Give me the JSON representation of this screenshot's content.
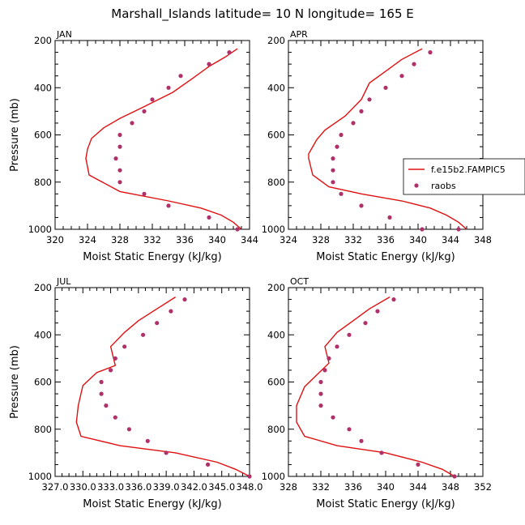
{
  "title": "Marshall_Islands  latitude= 10 N longitude= 165 E",
  "legend": {
    "model": "f.e15b2.FAMPIC5",
    "obs": "raobs"
  },
  "colors": {
    "model": "#e01010",
    "obs": "#b0306a"
  },
  "chart_data": [
    {
      "type": "line",
      "panel": "JAN",
      "xlabel": "Moist Static Energy (kJ/kg)",
      "ylabel": "Pressure (mb)",
      "xlim": [
        320,
        344
      ],
      "ylim": [
        200,
        1000
      ],
      "xticks": [
        320,
        324,
        328,
        332,
        336,
        340,
        344
      ],
      "xtick_labels": [
        "320",
        "324",
        "328",
        "332",
        "336",
        "340",
        "344"
      ],
      "yticks": [
        200,
        400,
        600,
        800,
        1000
      ],
      "ytick_labels": [
        "200",
        "400",
        "600",
        "800",
        "1000"
      ],
      "model_series": {
        "name": "f.e15b2.FAMPIC5",
        "x": [
          342.5,
          341.0,
          339.0,
          337.0,
          334.5,
          331.0,
          328.0,
          326.0,
          324.5,
          324.0,
          323.8,
          324.2,
          328.0,
          334.0,
          338.0,
          340.5,
          342.0,
          343.0
        ],
        "y": [
          235,
          270,
          310,
          360,
          420,
          480,
          530,
          570,
          615,
          660,
          700,
          770,
          840,
          880,
          910,
          940,
          970,
          1000
        ]
      },
      "obs_series": {
        "name": "raobs",
        "x": [
          341.5,
          339.0,
          335.5,
          334.0,
          332.0,
          331.0,
          329.5,
          328.0,
          328.0,
          327.5,
          328.0,
          328.0,
          331.0,
          334.0,
          339.0,
          342.5
        ],
        "y": [
          250,
          300,
          350,
          400,
          450,
          500,
          550,
          600,
          650,
          700,
          750,
          800,
          850,
          900,
          950,
          1000
        ]
      }
    },
    {
      "type": "line",
      "panel": "APR",
      "xlabel": "Moist Static Energy (kJ/kg)",
      "ylabel": "",
      "xlim": [
        324,
        348
      ],
      "ylim": [
        200,
        1000
      ],
      "xticks": [
        324,
        328,
        332,
        336,
        340,
        344,
        348
      ],
      "xtick_labels": [
        "324",
        "328",
        "332",
        "336",
        "340",
        "344",
        "348"
      ],
      "yticks": [
        200,
        400,
        600,
        800,
        1000
      ],
      "ytick_labels": [
        "200",
        "400",
        "600",
        "800",
        "1000"
      ],
      "model_series": {
        "name": "f.e15b2.FAMPIC5",
        "x": [
          340.5,
          338.0,
          336.0,
          334.0,
          333.0,
          331.0,
          328.5,
          327.5,
          327.0,
          326.5,
          326.5,
          327.0,
          329.0,
          333.0,
          338.0,
          341.5,
          343.5,
          345.0,
          346.0
        ],
        "y": [
          235,
          280,
          330,
          380,
          450,
          520,
          580,
          620,
          650,
          680,
          700,
          770,
          820,
          850,
          880,
          910,
          940,
          970,
          1000
        ]
      },
      "obs_series": {
        "name": "raobs",
        "x": [
          341.5,
          339.5,
          338.0,
          336.0,
          334.0,
          333.0,
          332.0,
          330.5,
          330.0,
          329.5,
          329.5,
          329.5,
          330.5,
          333.0,
          336.5,
          340.5,
          345.0
        ],
        "y": [
          250,
          300,
          350,
          400,
          450,
          500,
          550,
          600,
          650,
          700,
          750,
          800,
          850,
          900,
          950,
          1000,
          1000
        ]
      }
    },
    {
      "type": "line",
      "panel": "JUL",
      "xlabel": "Moist Static Energy (kJ/kg)",
      "ylabel": "Pressure (mb)",
      "xlim": [
        327.0,
        348.0
      ],
      "ylim": [
        200,
        1000
      ],
      "xticks": [
        327.0,
        330.0,
        333.0,
        336.0,
        339.0,
        342.0,
        345.0,
        348.0
      ],
      "xtick_labels": [
        "327.0",
        "330.0",
        "333.0",
        "336.0",
        "339.0",
        "342.0",
        "345.0",
        "348.0"
      ],
      "yticks": [
        200,
        400,
        600,
        800,
        1000
      ],
      "ytick_labels": [
        "200",
        "400",
        "600",
        "800",
        "1000"
      ],
      "model_series": {
        "name": "f.e15b2.FAMPIC5",
        "x": [
          340.0,
          338.0,
          336.0,
          334.5,
          333.0,
          333.5,
          331.5,
          330.0,
          329.5,
          329.3,
          329.3,
          329.8,
          334.0,
          340.0,
          344.5,
          346.5,
          348.0
        ],
        "y": [
          240,
          290,
          340,
          390,
          450,
          530,
          560,
          615,
          700,
          770,
          770,
          830,
          870,
          900,
          940,
          970,
          1000
        ]
      },
      "obs_series": {
        "name": "raobs",
        "x": [
          341.0,
          339.5,
          338.0,
          336.5,
          334.5,
          333.5,
          333.0,
          332.0,
          332.0,
          332.5,
          333.5,
          335.0,
          337.0,
          339.0,
          343.5,
          348.0
        ],
        "y": [
          250,
          300,
          350,
          400,
          450,
          500,
          550,
          600,
          650,
          700,
          750,
          800,
          850,
          900,
          950,
          1000
        ]
      }
    },
    {
      "type": "line",
      "panel": "OCT",
      "xlabel": "Moist Static Energy (kJ/kg)",
      "ylabel": "",
      "xlim": [
        328,
        352
      ],
      "ylim": [
        200,
        1000
      ],
      "xticks": [
        328,
        332,
        336,
        340,
        344,
        348,
        352
      ],
      "xtick_labels": [
        "328",
        "332",
        "336",
        "340",
        "344",
        "348",
        "352"
      ],
      "yticks": [
        200,
        400,
        600,
        800,
        1000
      ],
      "ytick_labels": [
        "200",
        "400",
        "600",
        "800",
        "1000"
      ],
      "model_series": {
        "name": "f.e15b2.FAMPIC5",
        "x": [
          340.5,
          338.0,
          336.0,
          334.0,
          332.5,
          333.0,
          331.5,
          330.0,
          329.0,
          329.0,
          329.0,
          330.0,
          334.0,
          340.0,
          344.5,
          347.0,
          348.5
        ],
        "y": [
          240,
          290,
          340,
          390,
          450,
          520,
          570,
          620,
          700,
          770,
          770,
          830,
          870,
          900,
          940,
          970,
          1000
        ]
      },
      "obs_series": {
        "name": "raobs",
        "x": [
          341.0,
          339.0,
          337.5,
          335.5,
          334.0,
          333.0,
          332.5,
          332.0,
          332.0,
          332.0,
          333.5,
          335.5,
          337.0,
          339.5,
          344.0,
          348.5
        ],
        "y": [
          250,
          300,
          350,
          400,
          450,
          500,
          550,
          600,
          650,
          700,
          750,
          800,
          850,
          900,
          950,
          1000
        ]
      }
    }
  ]
}
